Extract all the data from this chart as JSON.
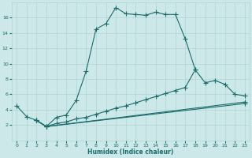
{
  "xlabel": "Humidex (Indice chaleur)",
  "xlim": [
    -0.5,
    23.5
  ],
  "ylim": [
    0,
    18
  ],
  "xticks": [
    0,
    1,
    2,
    3,
    4,
    5,
    6,
    7,
    8,
    9,
    10,
    11,
    12,
    13,
    14,
    15,
    16,
    17,
    18,
    19,
    20,
    21,
    22,
    23
  ],
  "yticks": [
    2,
    4,
    6,
    8,
    10,
    12,
    14,
    16
  ],
  "bg_color": "#cce8e8",
  "grid_color": "#b0d4d4",
  "line_color": "#1a6b6b",
  "line1_x": [
    0,
    1,
    2,
    3,
    4,
    5,
    6,
    7,
    8,
    9,
    10,
    11,
    12,
    13,
    14,
    15,
    16,
    17,
    18
  ],
  "line1_y": [
    4.5,
    3.1,
    2.6,
    1.8,
    3.0,
    3.3,
    5.2,
    9.0,
    14.5,
    15.2,
    17.3,
    16.5,
    16.4,
    16.3,
    16.7,
    16.4,
    16.4,
    13.2,
    9.2
  ],
  "line2_x": [
    2,
    3,
    4,
    5,
    6,
    7,
    8,
    9,
    10,
    11,
    12,
    13,
    14,
    15,
    16,
    17,
    18,
    19,
    20,
    21,
    22,
    23
  ],
  "line2_y": [
    2.6,
    1.8,
    2.2,
    2.4,
    2.8,
    3.0,
    3.4,
    3.8,
    4.2,
    4.5,
    4.9,
    5.3,
    5.7,
    6.1,
    6.5,
    6.9,
    9.2,
    7.5,
    7.8,
    7.3,
    6.0,
    5.8
  ],
  "line3_x": [
    2,
    3,
    23
  ],
  "line3_y": [
    2.6,
    1.8,
    5.0
  ],
  "line4_x": [
    2,
    3,
    23
  ],
  "line4_y": [
    2.6,
    1.8,
    4.8
  ]
}
